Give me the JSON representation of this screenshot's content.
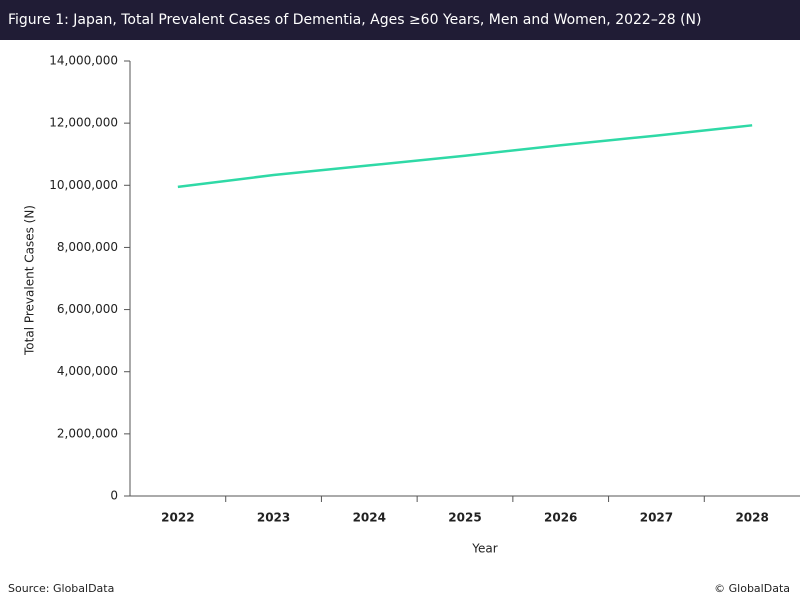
{
  "chart_data": {
    "type": "line",
    "title": "Figure 1: Japan, Total Prevalent Cases of Dementia, Ages ≥60 Years, Men and Women, 2022–28 (N)",
    "x_label": "Year",
    "y_label": "Total Prevalent Cases (N)",
    "categories": [
      "2022",
      "2023",
      "2024",
      "2025",
      "2026",
      "2027",
      "2028"
    ],
    "series": [
      {
        "name": "Total Prevalent Cases",
        "color": "#2fd9a6",
        "values": [
          9950000,
          10330000,
          10640000,
          10950000,
          11290000,
          11600000,
          11930000
        ]
      }
    ],
    "ylim": [
      0,
      14000000
    ],
    "yticks": [
      0,
      {
        "value": 2000000,
        "label": "2,000,000"
      },
      {
        "value": 4000000,
        "label": "4,000,000"
      },
      {
        "value": 6000000,
        "label": "6,000,000"
      },
      {
        "value": 8000000,
        "label": "8,000,000"
      },
      {
        "value": 10000000,
        "label": "10,000,000"
      },
      {
        "value": 12000000,
        "label": "12,000,000"
      },
      {
        "value": 14000000,
        "label": "14,000,000"
      }
    ],
    "grid": false,
    "source": "Source: GlobalData",
    "copyright": "© GlobalData"
  }
}
